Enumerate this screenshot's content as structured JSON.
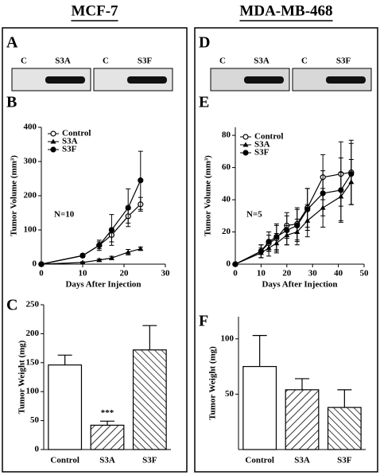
{
  "columns": [
    {
      "title": "MCF-7",
      "letters": [
        "A",
        "B",
        "C"
      ],
      "blots": [
        [
          "C",
          "S3A"
        ],
        [
          "C",
          "S3F"
        ]
      ]
    },
    {
      "title": "MDA-MB-468",
      "letters": [
        "D",
        "E",
        "F"
      ],
      "blots": [
        [
          "C",
          "S3A"
        ],
        [
          "C",
          "S3F"
        ]
      ]
    }
  ],
  "chart_data": [
    {
      "type": "line",
      "xlabel": "Days After Injection",
      "ylabel": "Tumor Volume (mm³)",
      "annotation": "N=10",
      "x": [
        0,
        10,
        14,
        17,
        21,
        24
      ],
      "xlim": [
        0,
        30
      ],
      "xticks": [
        0,
        10,
        20,
        30
      ],
      "ylim": [
        0,
        400
      ],
      "yticks": [
        0,
        100,
        200,
        300,
        400
      ],
      "series": [
        {
          "name": "Control",
          "color": "#000000",
          "marker": "open-circle",
          "values": [
            0,
            25,
            55,
            85,
            140,
            175
          ],
          "errors": [
            0,
            5,
            10,
            20,
            20,
            20
          ]
        },
        {
          "name": "S3A",
          "color": "#000000",
          "marker": "triangle",
          "values": [
            0,
            5,
            12,
            18,
            35,
            45
          ],
          "errors": [
            0,
            2,
            3,
            5,
            8,
            5
          ]
        },
        {
          "name": "S3F",
          "color": "#000000",
          "marker": "filled-circle",
          "values": [
            0,
            25,
            55,
            100,
            165,
            245
          ],
          "errors": [
            0,
            5,
            15,
            45,
            55,
            85
          ]
        }
      ]
    },
    {
      "type": "bar",
      "ylabel": "Tumor Weight (mg)",
      "annotation": "***",
      "categories": [
        "Control",
        "S3A",
        "S3F"
      ],
      "values": [
        146,
        42,
        172
      ],
      "errors": [
        17,
        7,
        42
      ],
      "patterns": [
        "none",
        "hatch",
        "backhatch"
      ],
      "ylim": [
        0,
        250
      ],
      "yticks": [
        0,
        50,
        100,
        150,
        200,
        250
      ]
    },
    {
      "type": "line",
      "xlabel": "Days After Injection",
      "ylabel": "Tumor Volume (mm³)",
      "annotation": "N=5",
      "x": [
        0,
        10,
        13,
        16,
        20,
        24,
        28,
        34,
        41,
        45
      ],
      "xlim": [
        0,
        50
      ],
      "xticks": [
        0,
        10,
        20,
        30,
        40,
        50
      ],
      "ylim": [
        0,
        85
      ],
      "yticks": [
        0,
        20,
        40,
        60,
        80
      ],
      "series": [
        {
          "name": "Control",
          "color": "#000000",
          "marker": "open-circle",
          "values": [
            0,
            8,
            13,
            16,
            24,
            25,
            35,
            54,
            56,
            57
          ],
          "errors": [
            0,
            4,
            5,
            8,
            8,
            10,
            12,
            14,
            20,
            20
          ]
        },
        {
          "name": "S3A",
          "color": "#000000",
          "marker": "triangle",
          "values": [
            0,
            7,
            10,
            13,
            18,
            20,
            27,
            35,
            42,
            51
          ],
          "errors": [
            0,
            3,
            5,
            6,
            6,
            8,
            10,
            12,
            15,
            14
          ]
        },
        {
          "name": "S3F",
          "color": "#000000",
          "marker": "filled-circle",
          "values": [
            0,
            8,
            14,
            17,
            21,
            24,
            34,
            44,
            46,
            56
          ],
          "errors": [
            0,
            4,
            6,
            8,
            9,
            10,
            13,
            14,
            20,
            19
          ]
        }
      ]
    },
    {
      "type": "bar",
      "ylabel": "Tumor Weight (mg)",
      "categories": [
        "Control",
        "S3A",
        "S3F"
      ],
      "values": [
        75,
        54,
        38
      ],
      "errors": [
        28,
        10,
        16
      ],
      "patterns": [
        "none",
        "hatch",
        "hatch2"
      ],
      "ylim": [
        0,
        120
      ],
      "yticks": [
        50,
        100
      ]
    }
  ]
}
